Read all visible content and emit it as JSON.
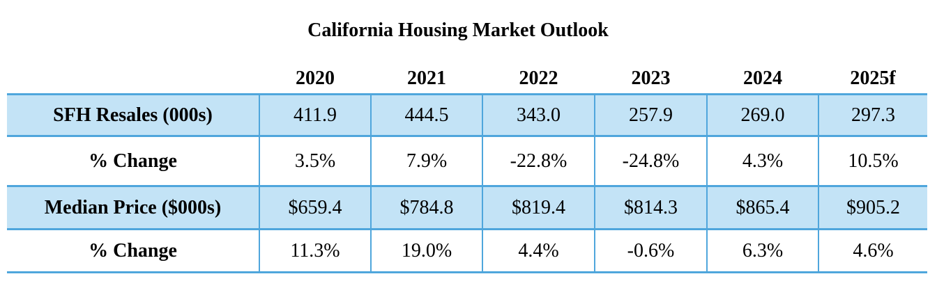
{
  "chart_data": {
    "type": "table",
    "title": "California Housing Market Outlook",
    "columns": [
      "2020",
      "2021",
      "2022",
      "2023",
      "2024",
      "2025f"
    ],
    "rows": [
      {
        "label": "SFH Resales (000s)",
        "values": [
          "411.9",
          "444.5",
          "343.0",
          "257.9",
          "269.0",
          "297.3"
        ]
      },
      {
        "label": "% Change",
        "values": [
          "3.5%",
          "7.9%",
          "-22.8%",
          "-24.8%",
          "4.3%",
          "10.5%"
        ]
      },
      {
        "label": "Median Price ($000s)",
        "values": [
          "$659.4",
          "$784.8",
          "$819.4",
          "$814.3",
          "$865.4",
          "$905.2"
        ]
      },
      {
        "label": "% Change",
        "values": [
          "11.3%",
          "19.0%",
          "4.4%",
          "-0.6%",
          "6.3%",
          "4.6%"
        ]
      }
    ]
  },
  "colors": {
    "row_shade": "#c3e3f6",
    "grid_line": "#4fa6dc"
  }
}
